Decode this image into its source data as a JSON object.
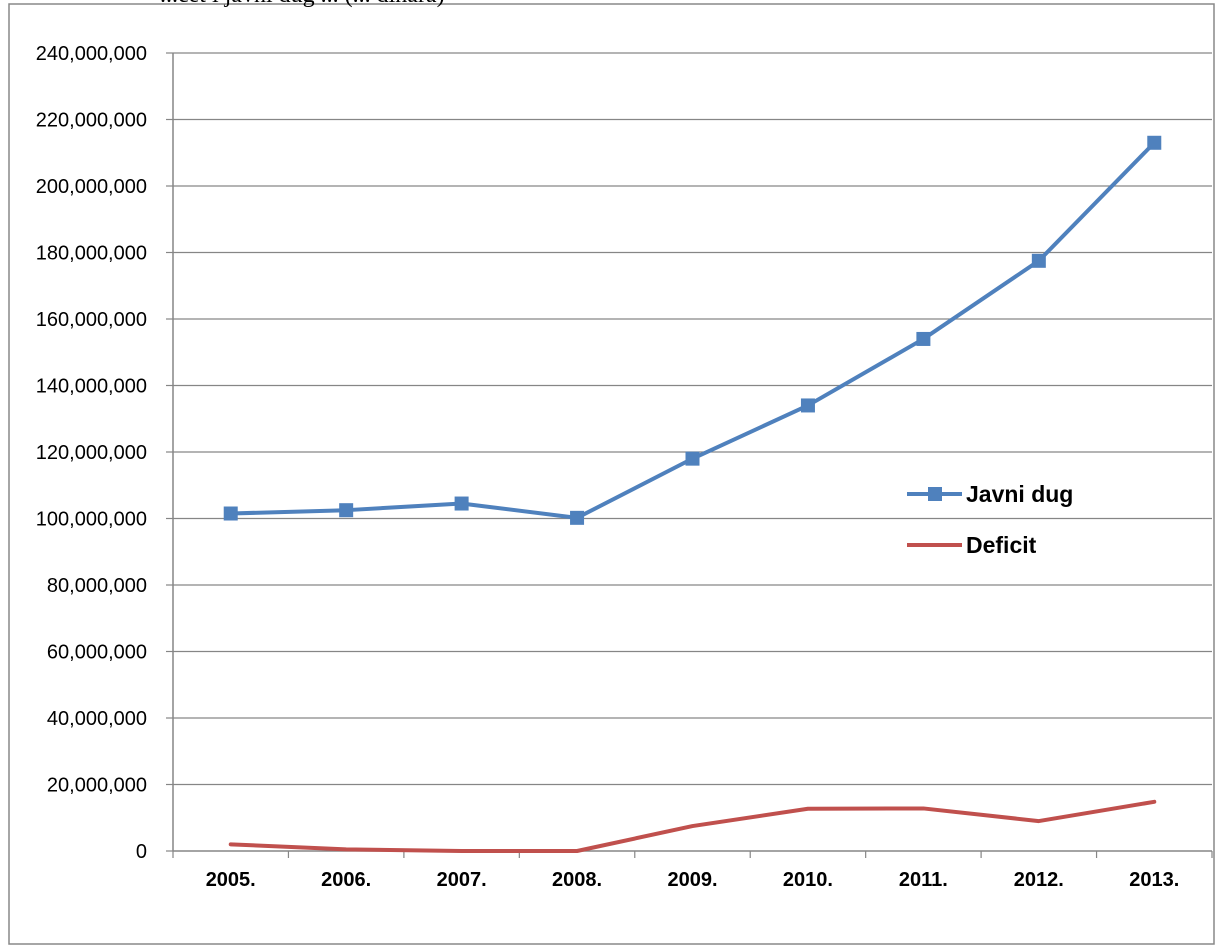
{
  "header_fragment": "...cet i javni dug ... (... dinara)",
  "chart_data": {
    "type": "line",
    "categories": [
      "2005.",
      "2006.",
      "2007.",
      "2008.",
      "2009.",
      "2010.",
      "2011.",
      "2012.",
      "2013."
    ],
    "series": [
      {
        "name": "Javni dug",
        "color": "#4f81bd",
        "marker": "square",
        "values": [
          101500000,
          102500000,
          104500000,
          100200000,
          118000000,
          134000000,
          154000000,
          177500000,
          213000000
        ]
      },
      {
        "name": "Deficit",
        "color": "#c0504d",
        "marker": "none",
        "values": [
          2000000,
          500000,
          0,
          0,
          7500000,
          12700000,
          12800000,
          9000000,
          14800000
        ]
      }
    ],
    "y_ticks": [
      "0",
      "20,000,000",
      "40,000,000",
      "60,000,000",
      "80,000,000",
      "100,000,000",
      "120,000,000",
      "140,000,000",
      "160,000,000",
      "180,000,000",
      "200,000,000",
      "220,000,000",
      "240,000,000"
    ],
    "ylim": [
      0,
      240000000
    ],
    "y_step": 20000000,
    "grid": true,
    "legend_position": "right-middle"
  }
}
